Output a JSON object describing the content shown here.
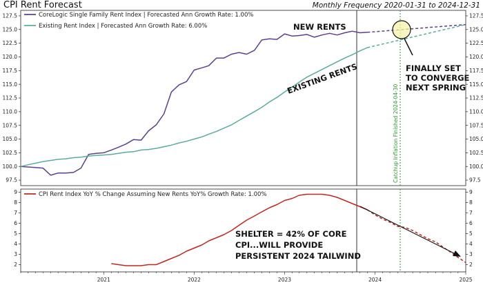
{
  "header": {
    "title": "CPI Rent Forecast",
    "subtitle": "Monthly Frequency 2020-01-31 to 2024-12-31"
  },
  "colors": {
    "corelogic": "#5b3f8c",
    "existing": "#5aab9e",
    "cpi_yoy": "#c0261e",
    "marker": "#2a9a2a",
    "highlight": "#f4f3a8"
  },
  "chart_data": [
    {
      "type": "line",
      "panel": "top",
      "x_range": [
        "2020-01-31",
        "2024-12-31"
      ],
      "ylim": [
        96.5,
        128.5
      ],
      "yticks": [
        97.5,
        100.0,
        102.5,
        105.0,
        107.5,
        110.0,
        112.5,
        115.0,
        117.5,
        120.0,
        122.5,
        125.0,
        127.5
      ],
      "grid": false,
      "legend": "top-left",
      "series": [
        {
          "name": "CoreLogic Single Family Rent Index | Forecasted Ann Growth Rate: 1.00%",
          "color": "#5b3f8c",
          "style": "solid",
          "x": [
            "2020-01-31",
            "2020-02-29",
            "2020-03-31",
            "2020-04-30",
            "2020-05-31",
            "2020-06-30",
            "2020-07-31",
            "2020-08-31",
            "2020-09-30",
            "2020-10-31",
            "2020-11-30",
            "2020-12-31",
            "2021-01-31",
            "2021-02-28",
            "2021-03-31",
            "2021-04-30",
            "2021-05-31",
            "2021-06-30",
            "2021-07-31",
            "2021-08-31",
            "2021-09-30",
            "2021-10-31",
            "2021-11-30",
            "2021-12-31",
            "2022-01-31",
            "2022-02-28",
            "2022-03-31",
            "2022-04-30",
            "2022-05-31",
            "2022-06-30",
            "2022-07-31",
            "2022-08-31",
            "2022-09-30",
            "2022-10-31",
            "2022-11-30",
            "2022-12-31",
            "2023-01-31",
            "2023-02-28",
            "2023-03-31",
            "2023-04-30",
            "2023-05-31",
            "2023-06-30",
            "2023-07-31",
            "2023-08-31",
            "2023-09-30",
            "2023-10-31",
            "2023-11-30"
          ],
          "values": [
            100.0,
            99.9,
            99.8,
            99.7,
            98.4,
            98.8,
            98.8,
            98.9,
            99.7,
            102.2,
            102.4,
            102.5,
            103.0,
            103.5,
            104.1,
            104.9,
            104.8,
            106.5,
            107.6,
            109.6,
            113.6,
            114.9,
            115.5,
            117.6,
            118.0,
            118.4,
            119.8,
            119.8,
            120.5,
            120.8,
            120.5,
            121.2,
            123.1,
            123.3,
            123.2,
            124.2,
            123.8,
            123.9,
            124.1,
            123.6,
            124.0,
            124.3,
            124.0,
            124.4,
            124.7,
            124.4,
            124.5
          ],
          "forecast": {
            "style": "dashed",
            "x": [
              "2023-11-30",
              "2024-12-31"
            ],
            "values": [
              124.5,
              125.9
            ]
          }
        },
        {
          "name": "Existing Rent Index | Forecasted Ann Growth Rate: 6.00%",
          "color": "#5aab9e",
          "style": "solid",
          "x": [
            "2020-01-31",
            "2020-02-29",
            "2020-03-31",
            "2020-04-30",
            "2020-05-31",
            "2020-06-30",
            "2020-07-31",
            "2020-08-31",
            "2020-09-30",
            "2020-10-31",
            "2020-11-30",
            "2020-12-31",
            "2021-01-31",
            "2021-02-28",
            "2021-03-31",
            "2021-04-30",
            "2021-05-31",
            "2021-06-30",
            "2021-07-31",
            "2021-08-31",
            "2021-09-30",
            "2021-10-31",
            "2021-11-30",
            "2021-12-31",
            "2022-01-31",
            "2022-02-28",
            "2022-03-31",
            "2022-04-30",
            "2022-05-31",
            "2022-06-30",
            "2022-07-31",
            "2022-08-31",
            "2022-09-30",
            "2022-10-31",
            "2022-11-30",
            "2022-12-31",
            "2023-01-31",
            "2023-02-28",
            "2023-03-31",
            "2023-04-30",
            "2023-05-31",
            "2023-06-30",
            "2023-07-31",
            "2023-08-31",
            "2023-09-30",
            "2023-10-31",
            "2023-11-30"
          ],
          "values": [
            100.0,
            100.3,
            100.6,
            100.9,
            101.1,
            101.3,
            101.4,
            101.6,
            101.7,
            101.9,
            102.0,
            102.1,
            102.2,
            102.4,
            102.6,
            102.7,
            103.0,
            103.1,
            103.3,
            103.6,
            103.9,
            104.3,
            104.6,
            105.0,
            105.4,
            105.9,
            106.4,
            107.0,
            107.6,
            108.4,
            109.2,
            110.0,
            110.8,
            111.8,
            112.6,
            113.6,
            114.5,
            115.4,
            116.3,
            117.0,
            117.7,
            118.4,
            119.1,
            119.8,
            120.4,
            121.1,
            121.7
          ],
          "forecast": {
            "style": "dashed",
            "x": [
              "2023-11-30",
              "2024-12-31"
            ],
            "values": [
              121.7,
              125.9
            ]
          }
        }
      ]
    },
    {
      "type": "line",
      "panel": "bottom",
      "x_range": [
        "2020-01-31",
        "2024-12-31"
      ],
      "ylim": [
        1.3,
        9.3
      ],
      "yticks": [
        2,
        3,
        4,
        5,
        6,
        7,
        8,
        9
      ],
      "xticks": [
        "2021",
        "2022",
        "2023",
        "2024",
        "2025"
      ],
      "grid": false,
      "legend": "top-left",
      "series": [
        {
          "name": "CPI Rent Index YoY % Change Assuming New Rents YoY% Growth Rate: 1.00%",
          "color": "#c0261e",
          "style": "solid",
          "x": [
            "2021-01-31",
            "2021-02-28",
            "2021-03-31",
            "2021-04-30",
            "2021-05-31",
            "2021-06-30",
            "2021-07-31",
            "2021-08-31",
            "2021-09-30",
            "2021-10-31",
            "2021-11-30",
            "2021-12-31",
            "2022-01-31",
            "2022-02-28",
            "2022-03-31",
            "2022-04-30",
            "2022-05-31",
            "2022-06-30",
            "2022-07-31",
            "2022-08-31",
            "2022-09-30",
            "2022-10-31",
            "2022-11-30",
            "2022-12-31",
            "2023-01-31",
            "2023-02-28",
            "2023-03-31",
            "2023-04-30",
            "2023-05-31",
            "2023-06-30",
            "2023-07-31",
            "2023-08-31",
            "2023-09-30",
            "2023-10-31",
            "2023-11-30"
          ],
          "values": [
            2.1,
            2.0,
            1.9,
            1.9,
            1.9,
            2.0,
            2.0,
            2.3,
            2.6,
            2.9,
            3.3,
            3.6,
            3.9,
            4.3,
            4.6,
            4.9,
            5.3,
            5.8,
            6.3,
            6.7,
            7.1,
            7.5,
            7.8,
            8.2,
            8.4,
            8.7,
            8.8,
            8.8,
            8.8,
            8.7,
            8.5,
            8.2,
            7.9,
            7.6,
            7.3
          ],
          "forecast": {
            "style": "dashed",
            "x": [
              "2023-11-30",
              "2023-12-31",
              "2024-01-31",
              "2024-02-29",
              "2024-03-31",
              "2024-04-30",
              "2024-05-31",
              "2024-06-30",
              "2024-07-31",
              "2024-08-31",
              "2024-09-30",
              "2024-10-31",
              "2024-11-30",
              "2024-12-31"
            ],
            "values": [
              7.3,
              6.8,
              6.4,
              6.1,
              5.7,
              5.6,
              5.3,
              4.9,
              4.5,
              4.2,
              3.7,
              3.2,
              2.7,
              2.2
            ]
          }
        }
      ]
    }
  ],
  "markers": {
    "vline_catchup_label": "Catchup Inflation Finished 2024-04-30"
  },
  "annotations": {
    "new_rents": "NEW RENTS",
    "existing_rents": "EXISTING RENTS",
    "converge_line1": "FINALLY SET",
    "converge_line2": "TO CONVERGE",
    "converge_line3": "NEXT SPRING",
    "shelter_line1": "SHELTER  =  42% OF CORE",
    "shelter_line2": "CPI...WILL PROVIDE",
    "shelter_line3": "PERSISTENT 2024 TAILWIND"
  }
}
